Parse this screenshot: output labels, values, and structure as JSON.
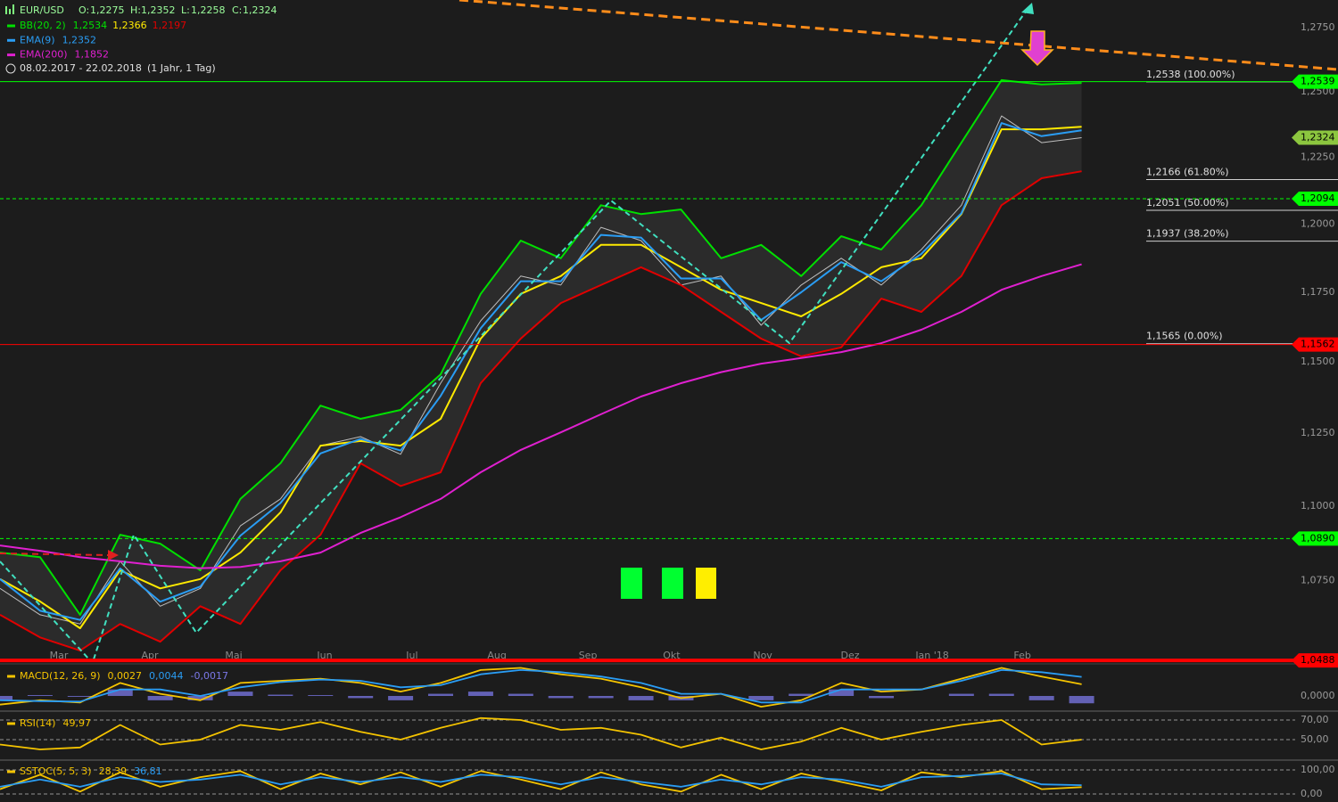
{
  "chart_data": [
    {
      "type": "price",
      "title": "EUR/USD",
      "ohlc": [
        {
          "name": "O:",
          "reading": {
            "value": 1.2275,
            "label": "1,2275"
          }
        },
        {
          "name": "H:",
          "reading": {
            "value": 1.2352,
            "label": "1,2352"
          }
        },
        {
          "name": "L:",
          "reading": {
            "value": 1.2258,
            "label": "1,2258"
          }
        },
        {
          "name": "C:",
          "reading": {
            "value": 1.2324,
            "label": "1,2324"
          }
        }
      ],
      "period": "08.02.2017 - 22.02.2018",
      "period_note": "(1 Jahr, 1 Tag)",
      "log_scale": true,
      "x": [
        0,
        2,
        4,
        6,
        8,
        10,
        12,
        14,
        16,
        18,
        20,
        22,
        24,
        26,
        28,
        30,
        32,
        34,
        36,
        38,
        40,
        42,
        44,
        46,
        48,
        50,
        52,
        54
      ],
      "xlim": [
        0,
        66.8
      ],
      "xticks": [
        {
          "value": 2.94,
          "label": "Mar"
        },
        {
          "value": 7.48,
          "label": "Apr"
        },
        {
          "value": 11.67,
          "label": "Mai"
        },
        {
          "value": 16.21,
          "label": "Jun"
        },
        {
          "value": 20.57,
          "label": "Jul"
        },
        {
          "value": 24.81,
          "label": "Aug"
        },
        {
          "value": 29.35,
          "label": "Sep"
        },
        {
          "value": 33.53,
          "label": "Okt"
        },
        {
          "value": 38.08,
          "label": "Nov"
        },
        {
          "value": 42.44,
          "label": "Dez"
        },
        {
          "value": 46.54,
          "label": "Jan '18"
        },
        {
          "value": 51.04,
          "label": "Feb"
        }
      ],
      "ylim": [
        1.0477,
        1.2859
      ],
      "yticks": [
        {
          "value": 1.275,
          "label": "1,2750"
        },
        {
          "value": 1.25,
          "label": "1,2500"
        },
        {
          "value": 1.225,
          "label": "1,2250"
        },
        {
          "value": 1.2,
          "label": "1,2000"
        },
        {
          "value": 1.175,
          "label": "1,1750"
        },
        {
          "value": 1.15,
          "label": "1,1500"
        },
        {
          "value": 1.125,
          "label": "1,1250"
        },
        {
          "value": 1.1,
          "label": "1,1000"
        },
        {
          "value": 1.075,
          "label": "1,0750"
        }
      ],
      "close": {
        "color": "#bdbdbd",
        "values": [
          1.0724,
          1.0637,
          1.0607,
          1.0814,
          1.0665,
          1.0724,
          1.0933,
          1.1024,
          1.1207,
          1.1238,
          1.1177,
          1.1425,
          1.1647,
          1.1809,
          1.1776,
          1.1988,
          1.1939,
          1.1776,
          1.1809,
          1.1631,
          1.1776,
          1.1874,
          1.1776,
          1.1906,
          1.207,
          1.2407,
          1.2305,
          1.2324
        ]
      },
      "indicators": [
        {
          "name": "BB(20, 2)",
          "color": "#00e000",
          "band_fill": "#2b2b2b",
          "lines": [
            {
              "color": "#00e000",
              "values": [
                1.0843,
                1.0828,
                1.0637,
                1.0903,
                1.0873,
                1.0784,
                1.1024,
                1.1146,
                1.1346,
                1.13,
                1.1331,
                1.1456,
                1.1744,
                1.1939,
                1.1874,
                1.207,
                1.2037,
                1.2054,
                1.1874,
                1.1923,
                1.1809,
                1.1955,
                1.1906,
                1.207,
                1.2305,
                1.2545,
                1.2528,
                1.2534
              ],
              "reading": {
                "value": 1.2534,
                "label": "1,2534"
              }
            },
            {
              "color": "#ffea00",
              "values": [
                1.0755,
                1.0681,
                1.0593,
                1.0784,
                1.0724,
                1.0755,
                1.0843,
                1.0978,
                1.1207,
                1.1223,
                1.1207,
                1.13,
                1.1583,
                1.1744,
                1.1809,
                1.1923,
                1.1923,
                1.1841,
                1.1759,
                1.1711,
                1.1663,
                1.1744,
                1.1841,
                1.1874,
                1.2037,
                1.2356,
                1.2356,
                1.2366
              ],
              "reading": {
                "value": 1.2366,
                "label": "1,2366"
              }
            },
            {
              "color": "#e00000",
              "values": [
                1.0637,
                1.0563,
                1.052,
                1.0607,
                1.0549,
                1.0665,
                1.0607,
                1.0784,
                1.0903,
                1.1146,
                1.1068,
                1.1115,
                1.1425,
                1.1583,
                1.1711,
                1.1776,
                1.1841,
                1.1776,
                1.1679,
                1.1583,
                1.152,
                1.1552,
                1.1727,
                1.1679,
                1.1809,
                1.207,
                1.2171,
                1.2197
              ],
              "reading": {
                "value": 1.2197,
                "label": "1,2197"
              }
            }
          ]
        },
        {
          "name": "EMA(9)",
          "color": "#2a9df4",
          "lines": [
            {
              "color": "#2a9df4",
              "values": [
                1.0755,
                1.065,
                1.062,
                1.079,
                1.068,
                1.073,
                1.09,
                1.101,
                1.118,
                1.123,
                1.119,
                1.138,
                1.162,
                1.179,
                1.179,
                1.196,
                1.195,
                1.18,
                1.18,
                1.165,
                1.175,
                1.186,
                1.179,
                1.189,
                1.204,
                1.238,
                1.233,
                1.2352
              ],
              "reading": {
                "value": 1.2352,
                "label": "1,2352"
              }
            }
          ]
        },
        {
          "name": "EMA(200)",
          "color": "#e020d0",
          "lines": [
            {
              "color": "#e020d0",
              "values": [
                1.0867,
                1.0849,
                1.0828,
                1.0814,
                1.0799,
                1.0791,
                1.0795,
                1.0814,
                1.0843,
                1.0909,
                1.0962,
                1.1024,
                1.1115,
                1.1192,
                1.1253,
                1.1316,
                1.1378,
                1.1425,
                1.1464,
                1.1494,
                1.1514,
                1.1535,
                1.1567,
                1.1615,
                1.1679,
                1.1759,
                1.1809,
                1.1852
              ],
              "reading": {
                "value": 1.1852,
                "label": "1,1852"
              }
            }
          ]
        }
      ],
      "levels": [
        {
          "value": 1.2539,
          "label": "1,2539",
          "color": "#00ff00",
          "style": "solid"
        },
        {
          "value": 1.2094,
          "label": "1,2094",
          "color": "#00ff00",
          "style": "dashed"
        },
        {
          "value": 1.1562,
          "label": "1,1562",
          "color": "#ff0000",
          "style": "solid"
        },
        {
          "value": 1.089,
          "label": "1,0890",
          "color": "#00ff00",
          "style": "dashed"
        },
        {
          "value": 1.0488,
          "label": "1,0488",
          "color": "#ff0000",
          "style": "thick"
        }
      ],
      "last_price": {
        "value": 1.2324,
        "label": "1,2324",
        "color": "#8cc63f"
      },
      "fib_levels": [
        {
          "value": 1.2538,
          "label": "1,2538 (100.00%)"
        },
        {
          "value": 1.2166,
          "label": "1,2166 (61.80%)"
        },
        {
          "value": 1.2051,
          "label": "1,2051 (50.00%)"
        },
        {
          "value": 1.1937,
          "label": "1,1937 (38.20%)"
        },
        {
          "value": 1.1565,
          "label": "1,1565 (0.00%)"
        }
      ]
    },
    {
      "type": "macd",
      "title": "MACD(12, 26, 9)",
      "ylim": [
        -0.0033,
        0.0068
      ],
      "yticks": [
        {
          "value": 0,
          "label": "0,0000"
        }
      ],
      "grid": false,
      "series": [
        {
          "kind": "line",
          "color": "#f5c400",
          "values": [
            -0.002,
            -0.001,
            -0.0015,
            0.003,
            0.0005,
            -0.001,
            0.003,
            0.0035,
            0.004,
            0.003,
            0.001,
            0.003,
            0.006,
            0.0065,
            0.005,
            0.004,
            0.002,
            -0.0005,
            0.0005,
            -0.0025,
            -0.001,
            0.003,
            0.001,
            0.0015,
            0.004,
            0.0065,
            0.0045,
            0.0027
          ],
          "reading": {
            "value": 0.0027,
            "label": "0,0027"
          }
        },
        {
          "kind": "line",
          "color": "#2a9df4",
          "values": [
            -0.001,
            -0.0012,
            -0.0013,
            0.0015,
            0.0015,
            0,
            0.002,
            0.0032,
            0.0038,
            0.0035,
            0.002,
            0.0025,
            0.005,
            0.006,
            0.0055,
            0.0045,
            0.003,
            0.0005,
            0.0005,
            -0.0015,
            -0.0015,
            0.0015,
            0.0015,
            0.0015,
            0.0035,
            0.006,
            0.0055,
            0.0044
          ],
          "reading": {
            "value": 0.0044,
            "label": "0,0044"
          }
        },
        {
          "kind": "histogram",
          "color": "#7b78e8",
          "values": [
            -0.001,
            0.0002,
            -0.0002,
            0.0015,
            -0.001,
            -0.001,
            0.001,
            0.0003,
            0.0002,
            -0.0005,
            -0.001,
            0.0005,
            0.001,
            0.0005,
            -0.0005,
            -0.0005,
            -0.001,
            -0.001,
            0,
            -0.001,
            0.0005,
            0.0015,
            -0.0005,
            0,
            0.0005,
            0.0005,
            -0.001,
            -0.0017
          ],
          "reading": {
            "value": -0.0017,
            "label": "-0,0017"
          }
        }
      ]
    },
    {
      "type": "rsi",
      "title": "RSI(14)",
      "ylim": [
        30,
        77.3
      ],
      "yticks": [
        {
          "value": 70,
          "label": "70,00"
        },
        {
          "value": 50,
          "label": "50,00"
        }
      ],
      "grid": true,
      "series": [
        {
          "kind": "line",
          "color": "#f5c400",
          "values": [
            45,
            40,
            42,
            65,
            45,
            50,
            65,
            60,
            68,
            58,
            50,
            62,
            72,
            70,
            60,
            62,
            55,
            42,
            52,
            40,
            48,
            62,
            50,
            58,
            65,
            70,
            45,
            49.97
          ],
          "reading": {
            "value": 49.97,
            "label": "49,97"
          }
        }
      ]
    },
    {
      "type": "sstoc",
      "title": "SSTOC(5, 5, 3)",
      "ylim": [
        -25.9,
        129.6
      ],
      "yticks": [
        {
          "value": 100,
          "label": "100,00"
        },
        {
          "value": 0,
          "label": "0,00"
        }
      ],
      "grid": true,
      "series": [
        {
          "kind": "line",
          "color": "#f5c400",
          "values": [
            20,
            80,
            10,
            90,
            30,
            70,
            95,
            20,
            85,
            40,
            90,
            30,
            95,
            60,
            20,
            90,
            40,
            10,
            80,
            20,
            85,
            50,
            15,
            90,
            70,
            95,
            20,
            28.39
          ],
          "reading": {
            "value": 28.39,
            "label": "28,39"
          }
        },
        {
          "kind": "line",
          "color": "#2a9df4",
          "values": [
            30,
            60,
            30,
            70,
            50,
            60,
            80,
            40,
            70,
            50,
            70,
            50,
            80,
            70,
            40,
            70,
            50,
            30,
            60,
            40,
            70,
            60,
            30,
            70,
            75,
            85,
            40,
            36.81
          ],
          "reading": {
            "value": 36.81,
            "label": "36,81"
          }
        }
      ]
    }
  ]
}
